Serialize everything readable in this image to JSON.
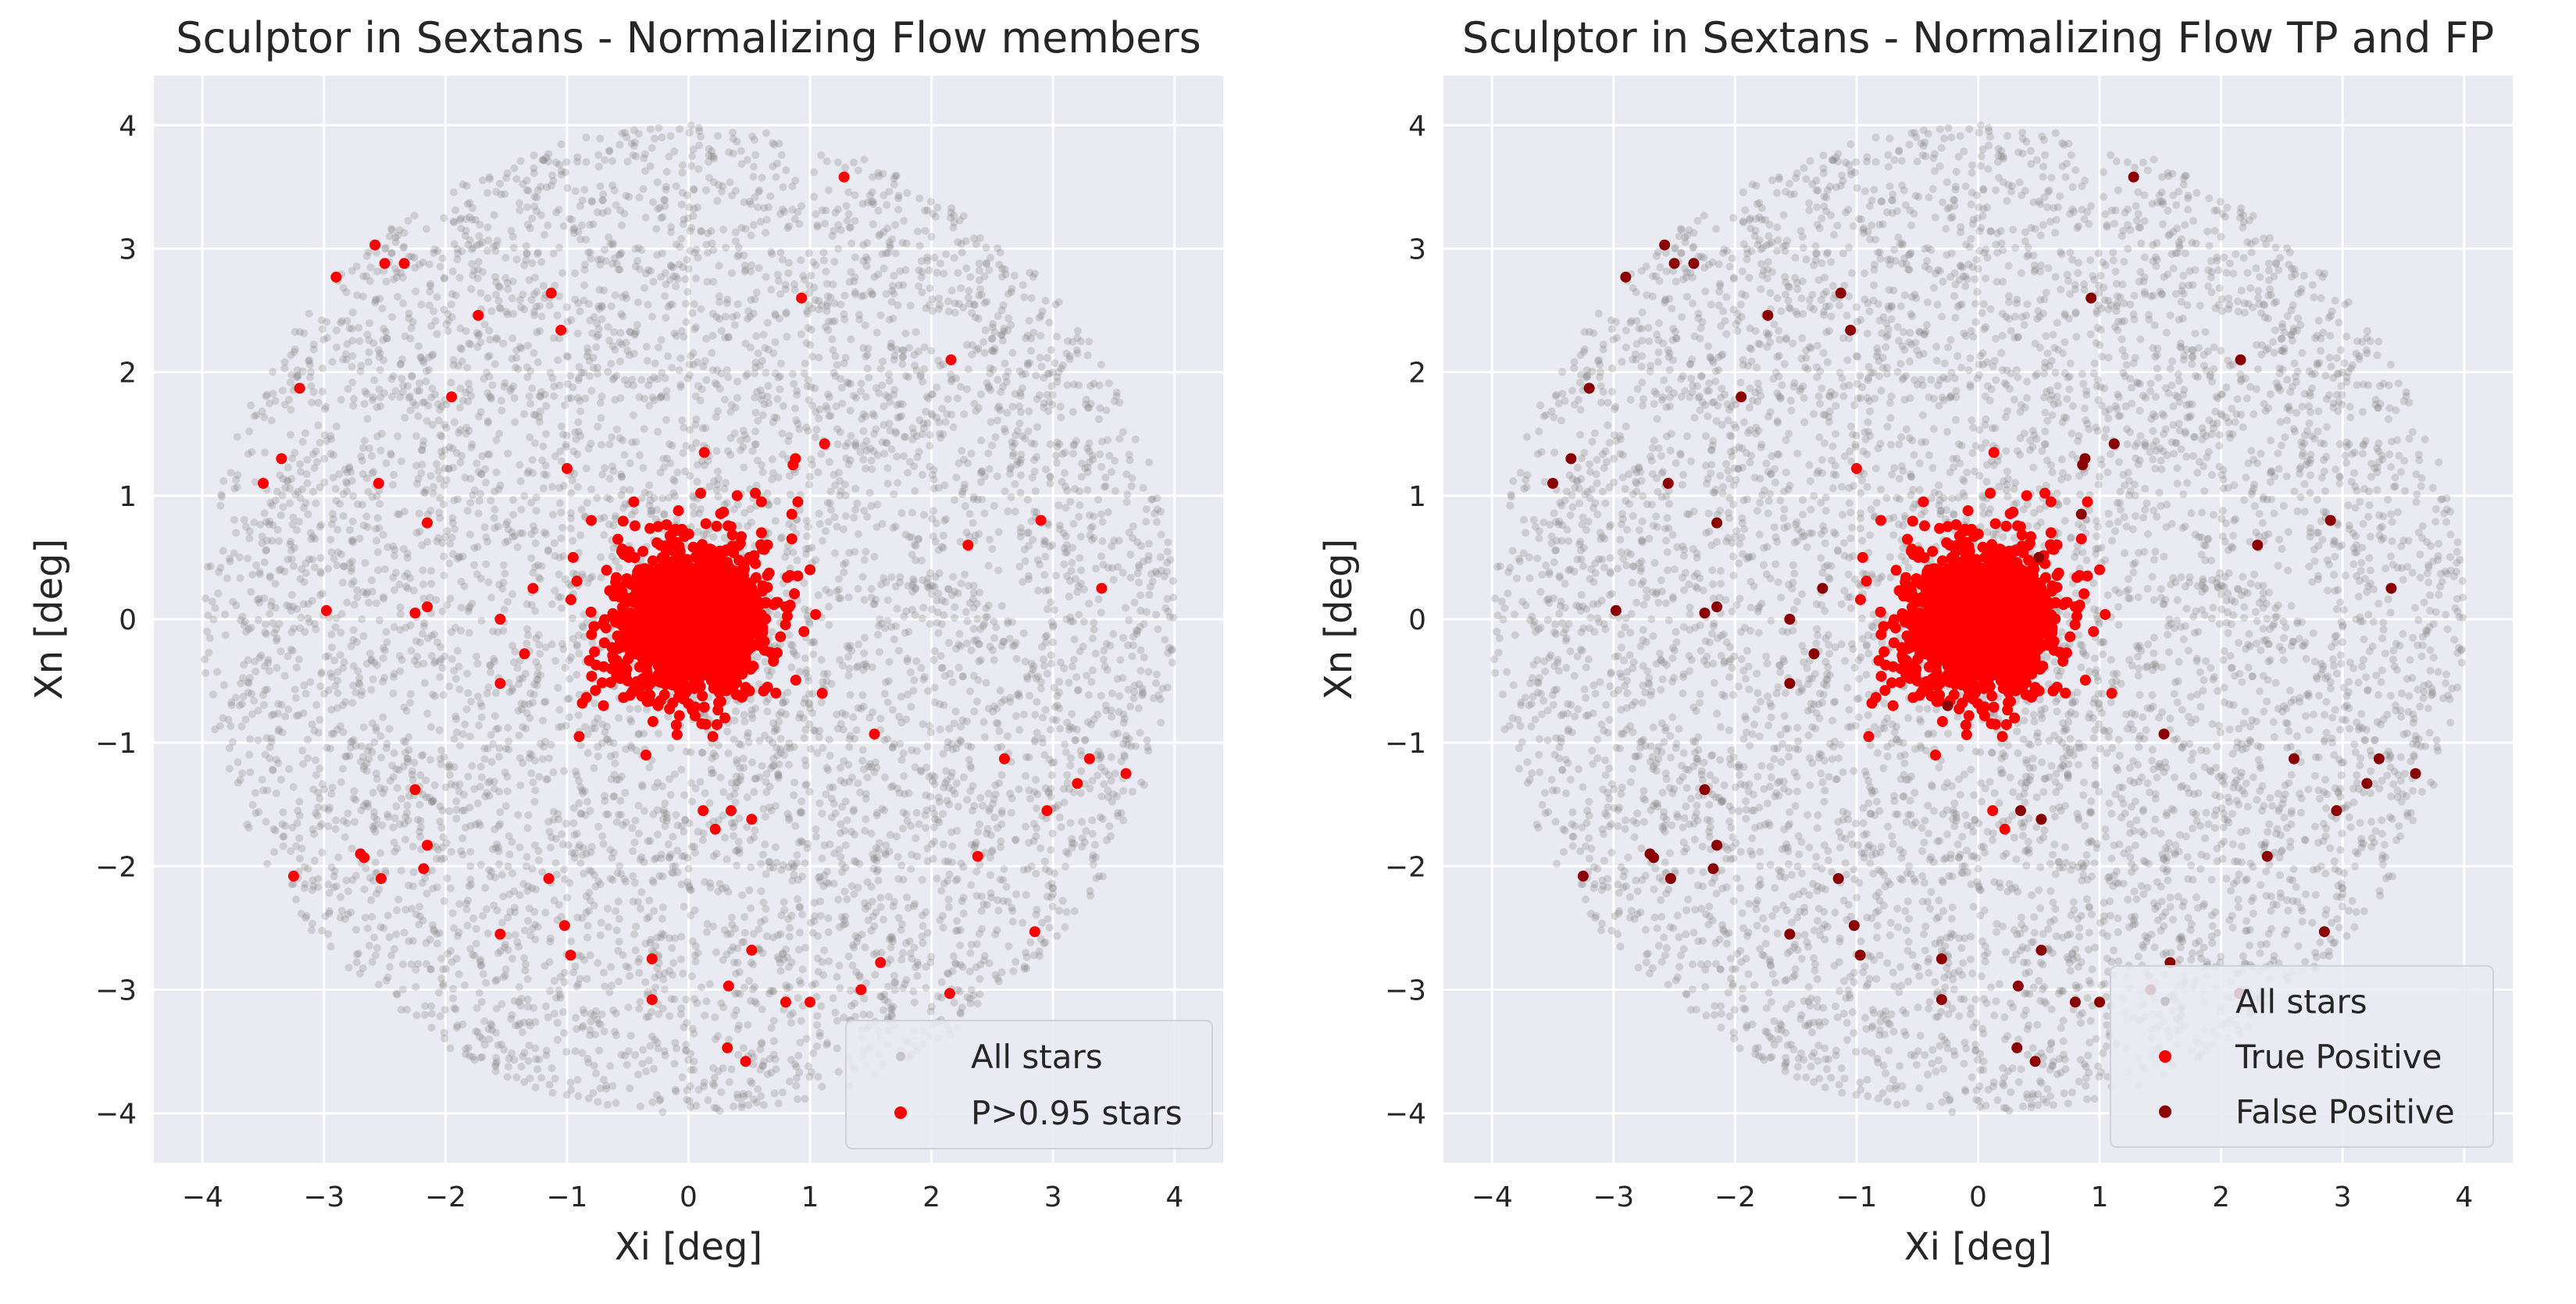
{
  "chart_data": [
    {
      "type": "scatter",
      "title": "Sculptor in Sextans - Normalizing Flow members",
      "xlabel": "Xi [deg]",
      "ylabel": "Xn [deg]",
      "xlim": [
        -4.4,
        4.4
      ],
      "ylim": [
        -4.4,
        4.4
      ],
      "xticks": [
        -4,
        -3,
        -2,
        -1,
        0,
        1,
        2,
        3,
        4
      ],
      "yticks": [
        -4,
        -3,
        -2,
        -1,
        0,
        1,
        2,
        3,
        4
      ],
      "grid": true,
      "background": "#eaeaf2",
      "legend": {
        "placement": "lower-right"
      },
      "series": [
        {
          "name": "All stars",
          "color": "#808080",
          "kind": "field",
          "field_radius_deg": 4.0,
          "n_points": 6000
        },
        {
          "name": "P>0.95 stars",
          "color": "#ff0000",
          "kind": "members_all",
          "core_center": [
            0.0,
            0.0
          ],
          "core_sigma_deg": 0.3,
          "core_n_points": 1500
        }
      ]
    },
    {
      "type": "scatter",
      "title": "Sculptor in Sextans - Normalizing Flow TP and FP",
      "xlabel": "Xi [deg]",
      "ylabel": "Xn [deg]",
      "xlim": [
        -4.4,
        4.4
      ],
      "ylim": [
        -4.4,
        4.4
      ],
      "xticks": [
        -4,
        -3,
        -2,
        -1,
        0,
        1,
        2,
        3,
        4
      ],
      "yticks": [
        -4,
        -3,
        -2,
        -1,
        0,
        1,
        2,
        3,
        4
      ],
      "grid": true,
      "background": "#eaeaf2",
      "legend": {
        "placement": "lower-right"
      },
      "series": [
        {
          "name": "All stars",
          "color": "#808080",
          "kind": "field",
          "field_radius_deg": 4.0,
          "n_points": 6000
        },
        {
          "name": "True Positive",
          "color": "#ff0000",
          "kind": "members_tp",
          "core_center": [
            0.0,
            0.0
          ],
          "core_sigma_deg": 0.3,
          "core_n_points": 1500
        },
        {
          "name": "False Positive",
          "color": "#8b0000",
          "kind": "members_fp"
        }
      ]
    }
  ],
  "members": {
    "true_positive_outliers": [
      [
        0.13,
        1.35
      ],
      [
        0.4,
        1.0
      ],
      [
        0.55,
        1.02
      ],
      [
        0.6,
        0.95
      ],
      [
        -0.95,
        0.5
      ],
      [
        -0.55,
        0.55
      ],
      [
        0.85,
        0.65
      ],
      [
        1.0,
        0.4
      ],
      [
        1.1,
        -0.6
      ],
      [
        -0.35,
        -1.1
      ],
      [
        -0.9,
        -0.95
      ],
      [
        -0.7,
        -0.7
      ],
      [
        0.4,
        0.3
      ],
      [
        -0.25,
        0.75
      ],
      [
        0.8,
        0.1
      ],
      [
        -0.5,
        -0.5
      ],
      [
        0.7,
        -0.3
      ],
      [
        0.6,
        0.7
      ],
      [
        -0.8,
        0.8
      ],
      [
        0.95,
        -0.1
      ],
      [
        0.3,
        -0.8
      ],
      [
        -0.6,
        0.3
      ],
      [
        0.65,
        -0.55
      ],
      [
        0.55,
        0.45
      ],
      [
        0.1,
        1.02
      ],
      [
        -0.45,
        0.95
      ],
      [
        0.2,
        -0.95
      ],
      [
        0.9,
        0.95
      ],
      [
        -0.3,
        0.1
      ],
      [
        0.9,
        0.35
      ],
      [
        -1.0,
        1.22
      ],
      [
        0.12,
        -1.55
      ],
      [
        0.22,
        -1.7
      ]
    ],
    "false_positive": [
      [
        1.28,
        3.58
      ],
      [
        -2.58,
        3.03
      ],
      [
        -2.5,
        2.88
      ],
      [
        -2.34,
        2.88
      ],
      [
        -2.9,
        2.77
      ],
      [
        -1.73,
        2.46
      ],
      [
        -1.13,
        2.64
      ],
      [
        -1.05,
        2.34
      ],
      [
        0.93,
        2.6
      ],
      [
        2.16,
        2.1
      ],
      [
        -3.2,
        1.87
      ],
      [
        -1.95,
        1.8
      ],
      [
        -3.35,
        1.3
      ],
      [
        -3.5,
        1.1
      ],
      [
        -2.55,
        1.1
      ],
      [
        -2.15,
        0.78
      ],
      [
        1.12,
        1.42
      ],
      [
        0.88,
        1.3
      ],
      [
        0.86,
        1.25
      ],
      [
        0.85,
        0.85
      ],
      [
        2.3,
        0.6
      ],
      [
        2.9,
        0.8
      ],
      [
        3.4,
        0.25
      ],
      [
        -1.28,
        0.25
      ],
      [
        -2.15,
        0.1
      ],
      [
        -2.25,
        0.05
      ],
      [
        -2.98,
        0.07
      ],
      [
        -1.55,
        0.0
      ],
      [
        -1.35,
        -0.28
      ],
      [
        -1.55,
        -0.52
      ],
      [
        -0.25,
        -0.7
      ],
      [
        0.5,
        0.5
      ],
      [
        1.53,
        -0.93
      ],
      [
        2.6,
        -1.13
      ],
      [
        3.3,
        -1.13
      ],
      [
        3.6,
        -1.25
      ],
      [
        3.2,
        -1.33
      ],
      [
        2.95,
        -1.55
      ],
      [
        -2.25,
        -1.38
      ],
      [
        -2.15,
        -1.83
      ],
      [
        -2.7,
        -1.9
      ],
      [
        -2.67,
        -1.93
      ],
      [
        -2.53,
        -2.1
      ],
      [
        -2.18,
        -2.02
      ],
      [
        -1.15,
        -2.1
      ],
      [
        -3.25,
        -2.08
      ],
      [
        2.38,
        -1.92
      ],
      [
        0.35,
        -1.55
      ],
      [
        0.52,
        -1.62
      ],
      [
        -1.55,
        -2.55
      ],
      [
        -1.02,
        -2.48
      ],
      [
        -0.97,
        -2.72
      ],
      [
        -0.3,
        -2.75
      ],
      [
        0.52,
        -2.68
      ],
      [
        1.58,
        -2.78
      ],
      [
        2.85,
        -2.53
      ],
      [
        -0.3,
        -3.08
      ],
      [
        0.33,
        -2.97
      ],
      [
        0.8,
        -3.1
      ],
      [
        1.0,
        -3.1
      ],
      [
        1.42,
        -3.0
      ],
      [
        2.15,
        -3.03
      ],
      [
        0.32,
        -3.47
      ],
      [
        0.47,
        -3.58
      ]
    ]
  }
}
